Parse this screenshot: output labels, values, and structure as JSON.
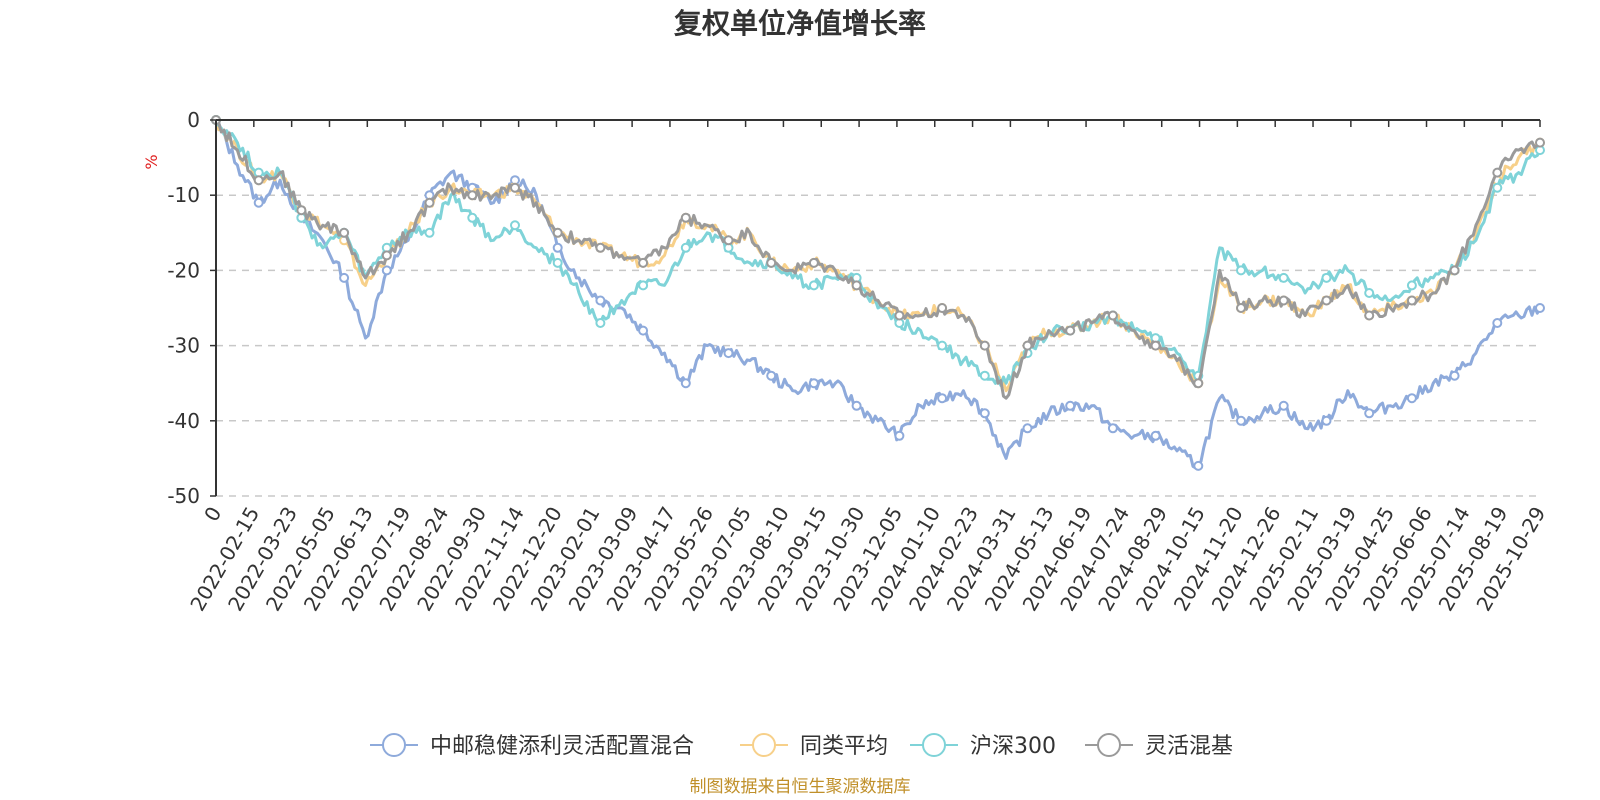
{
  "chart_data": {
    "type": "line",
    "title": "复权单位净值增长率",
    "ylabel": "%",
    "xlabel": "",
    "ylim": [
      -50,
      0
    ],
    "yticks": [
      0,
      -10,
      -20,
      -30,
      -40,
      -50
    ],
    "x_tick_labels": [
      "0",
      "2022-02-15",
      "2022-03-23",
      "2022-05-05",
      "2022-06-13",
      "2022-07-19",
      "2022-08-24",
      "2022-09-30",
      "2022-11-14",
      "2022-12-20",
      "2023-02-01",
      "2023-03-09",
      "2023-04-17",
      "2023-05-26",
      "2023-07-05",
      "2023-08-10",
      "2023-09-15",
      "2023-10-30",
      "2023-12-05",
      "2024-01-10",
      "2024-02-23",
      "2024-03-31",
      "2024-05-13",
      "2024-06-19",
      "2024-07-24",
      "2024-08-29",
      "2024-10-15",
      "2024-11-20",
      "2024-12-26",
      "2025-02-11",
      "2025-03-19",
      "2025-04-25",
      "2025-06-06",
      "2025-07-14",
      "2025-08-19",
      "2025-10-29"
    ],
    "series": [
      {
        "name": "中邮稳健添利灵活配置混合",
        "color": "#8eaadb",
        "values": [
          0,
          -6,
          -11,
          -8,
          -13,
          -16,
          -21,
          -29,
          -20,
          -16,
          -10,
          -7,
          -9,
          -11,
          -8,
          -10,
          -17,
          -21,
          -24,
          -25,
          -28,
          -31,
          -35,
          -30,
          -31,
          -32,
          -34,
          -36,
          -35,
          -35,
          -38,
          -40,
          -42,
          -38,
          -37,
          -36,
          -39,
          -45,
          -41,
          -39,
          -38,
          -38,
          -41,
          -42,
          -42,
          -44,
          -46,
          -37,
          -40,
          -39,
          -38,
          -41,
          -40,
          -36,
          -39,
          -38,
          -37,
          -35,
          -34,
          -31,
          -27,
          -26,
          -25
        ]
      },
      {
        "name": "同类平均",
        "color": "#f7d08a",
        "values": [
          0,
          -4,
          -8,
          -7,
          -12,
          -14,
          -16,
          -22,
          -18,
          -15,
          -11,
          -9,
          -10,
          -10,
          -9,
          -11,
          -15,
          -16,
          -17,
          -18,
          -19,
          -18,
          -13,
          -14,
          -16,
          -15,
          -19,
          -20,
          -19,
          -20,
          -22,
          -24,
          -26,
          -26,
          -25,
          -26,
          -30,
          -36,
          -30,
          -28,
          -28,
          -27,
          -26,
          -28,
          -30,
          -32,
          -35,
          -21,
          -25,
          -24,
          -24,
          -26,
          -24,
          -22,
          -26,
          -25,
          -24,
          -23,
          -20,
          -15,
          -8,
          -5,
          -3
        ]
      },
      {
        "name": "沪深300",
        "color": "#7fd3d8",
        "values": [
          0,
          -3,
          -7,
          -7,
          -13,
          -17,
          -15,
          -21,
          -17,
          -15,
          -15,
          -10,
          -13,
          -16,
          -14,
          -17,
          -19,
          -23,
          -27,
          -24,
          -22,
          -22,
          -17,
          -15,
          -17,
          -19,
          -19,
          -21,
          -22,
          -21,
          -21,
          -25,
          -27,
          -28,
          -30,
          -32,
          -34,
          -35,
          -31,
          -28,
          -28,
          -27,
          -26,
          -28,
          -29,
          -31,
          -34,
          -17,
          -20,
          -20,
          -21,
          -23,
          -21,
          -20,
          -23,
          -24,
          -22,
          -21,
          -20,
          -16,
          -9,
          -7,
          -4
        ]
      },
      {
        "name": "灵活混基",
        "color": "#9a9a9a",
        "values": [
          0,
          -4,
          -8,
          -7,
          -12,
          -14,
          -15,
          -21,
          -18,
          -15,
          -11,
          -9,
          -10,
          -10,
          -9,
          -11,
          -15,
          -16,
          -17,
          -18,
          -19,
          -17,
          -13,
          -14,
          -16,
          -15,
          -19,
          -20,
          -19,
          -20,
          -22,
          -24,
          -26,
          -26,
          -25,
          -26,
          -30,
          -37,
          -30,
          -28,
          -28,
          -27,
          -26,
          -28,
          -30,
          -32,
          -35,
          -20,
          -25,
          -24,
          -24,
          -26,
          -24,
          -22,
          -26,
          -25,
          -24,
          -23,
          -20,
          -14,
          -7,
          -4,
          -3
        ]
      }
    ],
    "legend_position": "bottom",
    "grid": true
  },
  "source_note": "制图数据来自恒生聚源数据库"
}
